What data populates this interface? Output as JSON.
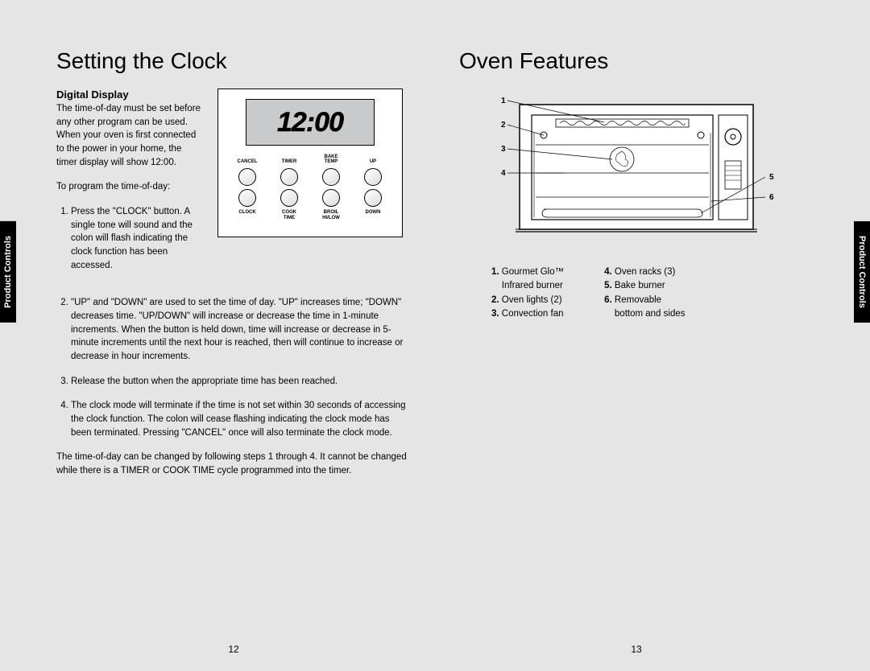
{
  "sideTab": "Product Controls",
  "left": {
    "title": "Setting the Clock",
    "subtitle": "Digital Display",
    "intro1": "The time-of-day must be set before any other program can be used. When your oven is first connected to the power in your home, the timer display will show 12:00.",
    "intro2": "To program the time-of-day:",
    "step1": "Press the \"CLOCK\" button. A single tone will sound and the colon will flash indicating the clock function has been accessed.",
    "step2": "\"UP\" and \"DOWN\" are used to set the time of day. \"UP\" increases time; \"DOWN\" decreases time. \"UP/DOWN\" will increase or decrease the time in 1-minute increments. When the button is held down, time will increase or decrease in 5-minute increments until the next hour is reached, then will continue to increase or decrease in hour increments.",
    "step3": "Release the button when the appropriate time has been reached.",
    "step4": "The clock mode will terminate if the time is not set within 30 seconds of accessing the clock function. The colon will cease flashing indicating the clock mode has been terminated. Pressing \"CANCEL\" once will also terminate the clock mode.",
    "outro": "The time-of-day can be changed by following steps 1 through 4. It cannot be changed while there is a TIMER or COOK TIME cycle programmed into the timer.",
    "lcd": "12:00",
    "btns": {
      "topRow": [
        "CANCEL",
        "TIMER",
        "BAKE\nTEMP",
        "UP"
      ],
      "bottomRow": [
        "CLOCK",
        "COOK\nTIME",
        "BROIL\nHI/LOW",
        "DOWN"
      ]
    },
    "pageNum": "12"
  },
  "right": {
    "title": "Oven Features",
    "callouts": [
      "1",
      "2",
      "3",
      "4",
      "5",
      "6"
    ],
    "featuresLeft": [
      {
        "n": "1.",
        "t": "Gourmet Glo™",
        "t2": "Infrared burner"
      },
      {
        "n": "2.",
        "t": "Oven lights (2)"
      },
      {
        "n": "3.",
        "t": "Convection fan"
      }
    ],
    "featuresRight": [
      {
        "n": "4.",
        "t": "Oven racks (3)"
      },
      {
        "n": "5.",
        "t": "Bake burner"
      },
      {
        "n": "6.",
        "t": "Removable",
        "t2": "bottom and sides"
      }
    ],
    "pageNum": "13"
  }
}
